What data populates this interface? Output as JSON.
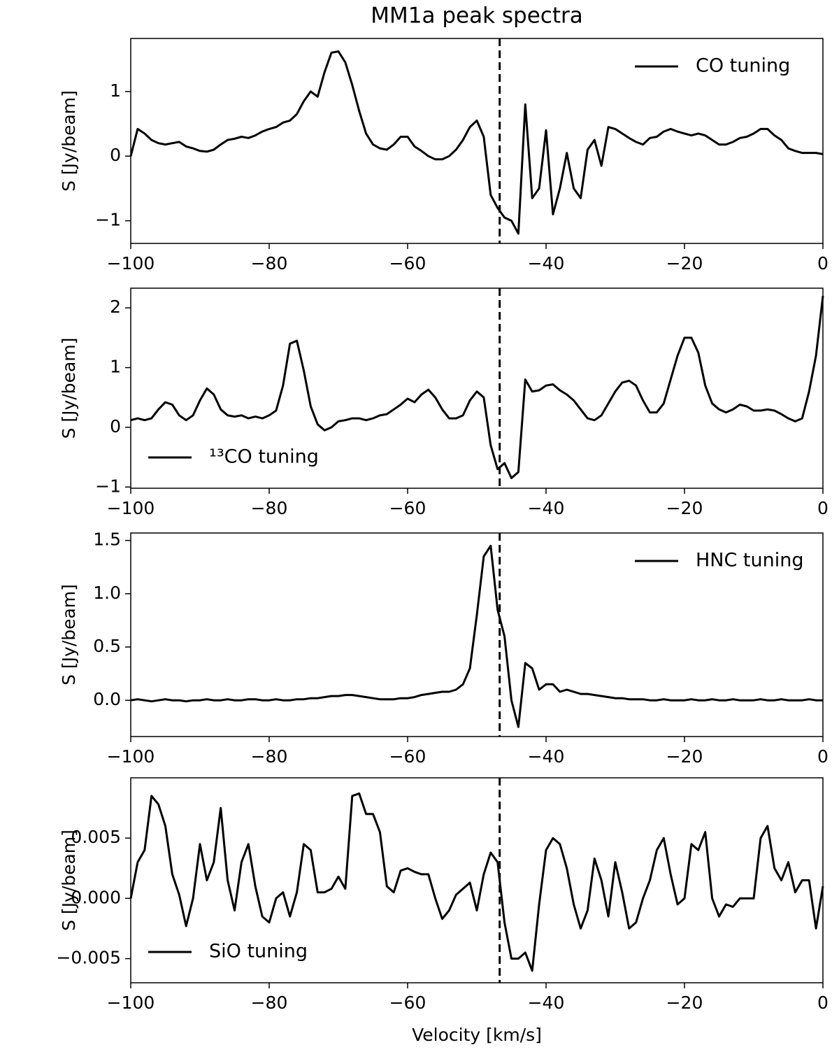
{
  "chart_data": [
    {
      "type": "line",
      "title": "MM1a peak spectra",
      "x": [
        -100,
        -99,
        -98,
        -97,
        -96,
        -95,
        -94,
        -93,
        -92,
        -91,
        -90,
        -89,
        -88,
        -87,
        -86,
        -85,
        -84,
        -83,
        -82,
        -81,
        -80,
        -79,
        -78,
        -77,
        -76,
        -75,
        -74,
        -73,
        -72,
        -71,
        -70,
        -69,
        -68,
        -67,
        -66,
        -65,
        -64,
        -63,
        -62,
        -61,
        -60,
        -59,
        -58,
        -57,
        -56,
        -55,
        -54,
        -53,
        -52,
        -51,
        -50,
        -49,
        -48,
        -47,
        -46,
        -45,
        -44,
        -43,
        -42,
        -41,
        -40,
        -39,
        -38,
        -37,
        -36,
        -35,
        -34,
        -33,
        -32,
        -31,
        -30,
        -29,
        -28,
        -27,
        -26,
        -25,
        -24,
        -23,
        -22,
        -21,
        -20,
        -19,
        -18,
        -17,
        -16,
        -15,
        -14,
        -13,
        -12,
        -11,
        -10,
        -9,
        -8,
        -7,
        -6,
        -5,
        -4,
        -3,
        -2,
        -1,
        0
      ],
      "series": [
        {
          "name": "CO tuning",
          "color": "#000000",
          "values": [
            0,
            0.42,
            0.35,
            0.25,
            0.2,
            0.18,
            0.2,
            0.22,
            0.15,
            0.12,
            0.08,
            0.07,
            0.1,
            0.18,
            0.25,
            0.27,
            0.3,
            0.28,
            0.32,
            0.38,
            0.42,
            0.45,
            0.52,
            0.55,
            0.65,
            0.85,
            1.0,
            0.92,
            1.3,
            1.6,
            1.62,
            1.45,
            1.1,
            0.7,
            0.35,
            0.18,
            0.12,
            0.1,
            0.18,
            0.3,
            0.3,
            0.15,
            0.08,
            0,
            -0.05,
            -0.05,
            0,
            0.1,
            0.25,
            0.45,
            0.55,
            0.3,
            -0.6,
            -0.8,
            -0.95,
            -1.0,
            -1.2,
            0.8,
            -0.65,
            -0.5,
            0.4,
            -0.9,
            -0.5,
            0.05,
            -0.5,
            -0.65,
            0.1,
            0.25,
            -0.15,
            0.45,
            0.42,
            0.35,
            0.28,
            0.22,
            0.18,
            0.28,
            0.3,
            0.38,
            0.42,
            0.38,
            0.35,
            0.32,
            0.35,
            0.32,
            0.25,
            0.18,
            0.18,
            0.22,
            0.28,
            0.3,
            0.35,
            0.42,
            0.42,
            0.32,
            0.25,
            0.12,
            0.08,
            0.05,
            0.05,
            0.05,
            0.03
          ]
        }
      ],
      "xlim": [
        -100,
        0
      ],
      "ylim": [
        -1.35,
        1.82
      ],
      "xticks": [
        {
          "value": -100,
          "label": "−100"
        },
        {
          "value": -80,
          "label": "−80"
        },
        {
          "value": -60,
          "label": "−60"
        },
        {
          "value": -40,
          "label": "−40"
        },
        {
          "value": -20,
          "label": "−20"
        },
        0
      ],
      "yticks": [
        {
          "value": -1,
          "label": "−1"
        },
        0,
        1
      ],
      "ylabel": "S [Jy/beam]",
      "legend": "upper right",
      "vline": -46.7
    },
    {
      "type": "line",
      "x": [
        -100,
        -99,
        -98,
        -97,
        -96,
        -95,
        -94,
        -93,
        -92,
        -91,
        -90,
        -89,
        -88,
        -87,
        -86,
        -85,
        -84,
        -83,
        -82,
        -81,
        -80,
        -79,
        -78,
        -77,
        -76,
        -75,
        -74,
        -73,
        -72,
        -71,
        -70,
        -69,
        -68,
        -67,
        -66,
        -65,
        -64,
        -63,
        -62,
        -61,
        -60,
        -59,
        -58,
        -57,
        -56,
        -55,
        -54,
        -53,
        -52,
        -51,
        -50,
        -49,
        -48,
        -47,
        -46,
        -45,
        -44,
        -43,
        -42,
        -41,
        -40,
        -39,
        -38,
        -37,
        -36,
        -35,
        -34,
        -33,
        -32,
        -31,
        -30,
        -29,
        -28,
        -27,
        -26,
        -25,
        -24,
        -23,
        -22,
        -21,
        -20,
        -19,
        -18,
        -17,
        -16,
        -15,
        -14,
        -13,
        -12,
        -11,
        -10,
        -9,
        -8,
        -7,
        -6,
        -5,
        -4,
        -3,
        -2,
        -1,
        0
      ],
      "series": [
        {
          "name": "¹³CO tuning",
          "color": "#000000",
          "values": [
            0.12,
            0.15,
            0.12,
            0.15,
            0.3,
            0.42,
            0.38,
            0.2,
            0.12,
            0.2,
            0.45,
            0.65,
            0.55,
            0.3,
            0.2,
            0.18,
            0.2,
            0.15,
            0.18,
            0.15,
            0.2,
            0.28,
            0.7,
            1.4,
            1.45,
            0.95,
            0.35,
            0.05,
            -0.05,
            0,
            0.1,
            0.12,
            0.15,
            0.15,
            0.12,
            0.15,
            0.2,
            0.22,
            0.3,
            0.38,
            0.48,
            0.42,
            0.55,
            0.63,
            0.5,
            0.3,
            0.15,
            0.15,
            0.2,
            0.45,
            0.6,
            0.5,
            -0.3,
            -0.7,
            -0.6,
            -0.85,
            -0.75,
            0.8,
            0.6,
            0.62,
            0.7,
            0.72,
            0.62,
            0.55,
            0.45,
            0.3,
            0.15,
            0.12,
            0.2,
            0.4,
            0.6,
            0.75,
            0.78,
            0.7,
            0.45,
            0.25,
            0.25,
            0.4,
            0.8,
            1.2,
            1.5,
            1.5,
            1.25,
            0.7,
            0.4,
            0.3,
            0.25,
            0.3,
            0.38,
            0.35,
            0.28,
            0.28,
            0.3,
            0.28,
            0.22,
            0.15,
            0.1,
            0.15,
            0.6,
            1.2,
            2.2
          ]
        }
      ],
      "xlim": [
        -100,
        0
      ],
      "ylim": [
        -1.02,
        2.33
      ],
      "xticks": [
        {
          "value": -100,
          "label": "−100"
        },
        {
          "value": -80,
          "label": "−80"
        },
        {
          "value": -60,
          "label": "−60"
        },
        {
          "value": -40,
          "label": "−40"
        },
        {
          "value": -20,
          "label": "−20"
        },
        0
      ],
      "yticks": [
        {
          "value": -1,
          "label": "−1"
        },
        0,
        1,
        2
      ],
      "ylabel": "S [Jy/beam]",
      "legend": "lower left",
      "vline": -46.7
    },
    {
      "type": "line",
      "x": [
        -100,
        -99,
        -98,
        -97,
        -96,
        -95,
        -94,
        -93,
        -92,
        -91,
        -90,
        -89,
        -88,
        -87,
        -86,
        -85,
        -84,
        -83,
        -82,
        -81,
        -80,
        -79,
        -78,
        -77,
        -76,
        -75,
        -74,
        -73,
        -72,
        -71,
        -70,
        -69,
        -68,
        -67,
        -66,
        -65,
        -64,
        -63,
        -62,
        -61,
        -60,
        -59,
        -58,
        -57,
        -56,
        -55,
        -54,
        -53,
        -52,
        -51,
        -50,
        -49,
        -48,
        -47,
        -46,
        -45,
        -44,
        -43,
        -42,
        -41,
        -40,
        -39,
        -38,
        -37,
        -36,
        -35,
        -34,
        -33,
        -32,
        -31,
        -30,
        -29,
        -28,
        -27,
        -26,
        -25,
        -24,
        -23,
        -22,
        -21,
        -20,
        -19,
        -18,
        -17,
        -16,
        -15,
        -14,
        -13,
        -12,
        -11,
        -10,
        -9,
        -8,
        -7,
        -6,
        -5,
        -4,
        -3,
        -2,
        -1,
        0
      ],
      "series": [
        {
          "name": "HNC tuning",
          "color": "#000000",
          "values": [
            0,
            0.01,
            0,
            -0.01,
            0,
            0.01,
            0,
            0,
            -0.01,
            0,
            0,
            0.01,
            0,
            0,
            0.01,
            0,
            0,
            0.01,
            0.01,
            0,
            0,
            0.01,
            0,
            0,
            0.01,
            0.01,
            0.02,
            0.02,
            0.03,
            0.04,
            0.04,
            0.05,
            0.05,
            0.04,
            0.03,
            0.02,
            0.01,
            0.01,
            0.01,
            0.02,
            0.02,
            0.03,
            0.05,
            0.06,
            0.07,
            0.08,
            0.08,
            0.1,
            0.15,
            0.3,
            0.8,
            1.35,
            1.45,
            0.85,
            0.6,
            0,
            -0.25,
            0.35,
            0.3,
            0.1,
            0.15,
            0.15,
            0.08,
            0.1,
            0.08,
            0.06,
            0.06,
            0.05,
            0.04,
            0.03,
            0.02,
            0.02,
            0.01,
            0.01,
            0.01,
            0,
            0,
            0.01,
            0,
            0,
            0,
            0.01,
            0,
            0,
            0.01,
            0,
            0,
            0.01,
            0,
            0,
            0,
            0.01,
            0,
            0,
            0.01,
            0,
            0,
            0,
            0.01,
            0,
            0
          ]
        }
      ],
      "xlim": [
        -100,
        0
      ],
      "ylim": [
        -0.34,
        1.57
      ],
      "xticks": [
        {
          "value": -100,
          "label": "−100"
        },
        {
          "value": -80,
          "label": "−80"
        },
        {
          "value": -60,
          "label": "−60"
        },
        {
          "value": -40,
          "label": "−40"
        },
        {
          "value": -20,
          "label": "−20"
        },
        0
      ],
      "yticks": [
        {
          "value": 0,
          "label": "0.0"
        },
        0.5,
        {
          "value": 1,
          "label": "1.0"
        },
        1.5
      ],
      "ylabel": "S [Jy/beam]",
      "legend": "upper right",
      "vline": -46.7
    },
    {
      "type": "line",
      "xlabel": "Velocity [km/s]",
      "x": [
        -100,
        -99,
        -98,
        -97,
        -96,
        -95,
        -94,
        -93,
        -92,
        -91,
        -90,
        -89,
        -88,
        -87,
        -86,
        -85,
        -84,
        -83,
        -82,
        -81,
        -80,
        -79,
        -78,
        -77,
        -76,
        -75,
        -74,
        -73,
        -72,
        -71,
        -70,
        -69,
        -68,
        -67,
        -66,
        -65,
        -64,
        -63,
        -62,
        -61,
        -60,
        -59,
        -58,
        -57,
        -56,
        -55,
        -54,
        -53,
        -52,
        -51,
        -50,
        -49,
        -48,
        -47,
        -46,
        -45,
        -44,
        -43,
        -42,
        -41,
        -40,
        -39,
        -38,
        -37,
        -36,
        -35,
        -34,
        -33,
        -32,
        -31,
        -30,
        -29,
        -28,
        -27,
        -26,
        -25,
        -24,
        -23,
        -22,
        -21,
        -20,
        -19,
        -18,
        -17,
        -16,
        -15,
        -14,
        -13,
        -12,
        -11,
        -10,
        -9,
        -8,
        -7,
        -6,
        -5,
        -4,
        -3,
        -2,
        -1,
        0
      ],
      "series": [
        {
          "name": "SiO tuning",
          "color": "#000000",
          "values": [
            0,
            0.003,
            0.004,
            0.0085,
            0.0078,
            0.006,
            0.002,
            0.0003,
            -0.0023,
            0,
            0.0045,
            0.0015,
            0.003,
            0.0075,
            0.0015,
            -0.001,
            0.003,
            0.0045,
            0.001,
            -0.0015,
            -0.002,
            0,
            0.0005,
            -0.0015,
            0.0005,
            0.0045,
            0.004,
            0.0005,
            0.0005,
            0.0008,
            0.0018,
            0.0008,
            0.0085,
            0.0087,
            0.007,
            0.007,
            0.0055,
            0.001,
            0.0005,
            0.0023,
            0.0025,
            0.0022,
            0.002,
            0.002,
            0,
            -0.0017,
            -0.001,
            0.0003,
            0.0008,
            0.0013,
            -0.001,
            0.002,
            0.0038,
            0.003,
            -0.002,
            -0.005,
            -0.005,
            -0.0045,
            -0.006,
            -0.0005,
            0.004,
            0.005,
            0.0045,
            0.0025,
            -0.0005,
            -0.0025,
            -0.001,
            0.0033,
            0.0015,
            -0.0015,
            0.003,
            0.0005,
            -0.0025,
            -0.002,
            0,
            0.0015,
            0.004,
            0.005,
            0.002,
            -0.0005,
            0,
            0.0045,
            0.004,
            0.0055,
            0,
            -0.0015,
            -0.0005,
            -0.0007,
            0,
            0,
            0,
            0.005,
            0.006,
            0.0025,
            0.0015,
            0.003,
            0.0005,
            0.0015,
            0.0015,
            -0.0025,
            0.001
          ]
        }
      ],
      "xlim": [
        -100,
        0
      ],
      "ylim": [
        -0.007,
        0.01
      ],
      "xticks": [
        {
          "value": -100,
          "label": "−100"
        },
        {
          "value": -80,
          "label": "−80"
        },
        {
          "value": -60,
          "label": "−60"
        },
        {
          "value": -40,
          "label": "−40"
        },
        {
          "value": -20,
          "label": "−20"
        },
        0
      ],
      "yticks": [
        {
          "value": -0.005,
          "label": "−0.005"
        },
        {
          "value": 0,
          "label": "0.000"
        },
        0.005
      ],
      "ylabel": "S [Jy/beam]",
      "legend": "lower left",
      "vline": -46.7
    }
  ]
}
